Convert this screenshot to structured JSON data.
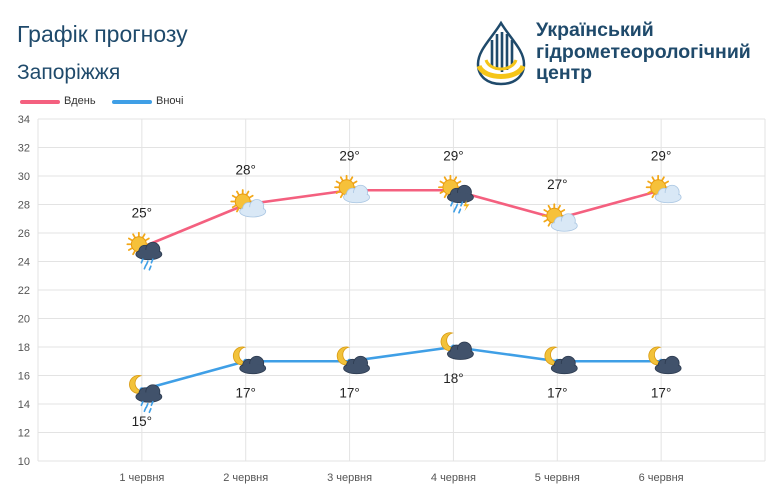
{
  "header": {
    "title": "Графік прогнозу",
    "city": "Запоріжжя"
  },
  "logo": {
    "lines": [
      "Український",
      "гідрометеорологічний",
      "центр"
    ],
    "colors": {
      "navy": "#1f4a6b",
      "yellow": "#f5c518"
    }
  },
  "chart_data": {
    "type": "line",
    "categories": [
      "1 червня",
      "2 червня",
      "3 червня",
      "4 червня",
      "5 червня",
      "6 червня"
    ],
    "ylim": [
      10,
      34
    ],
    "yticks": [
      10,
      12,
      14,
      16,
      18,
      20,
      22,
      24,
      26,
      28,
      30,
      32,
      34
    ],
    "grid": true,
    "legend_position": "top-left",
    "series": [
      {
        "name": "Вдень",
        "color": "#f4607f",
        "values": [
          25,
          28,
          29,
          29,
          27,
          29
        ],
        "labels": [
          "25°",
          "28°",
          "29°",
          "29°",
          "27°",
          "29°"
        ],
        "icons": [
          "sun-cloud-rain-icon",
          "sun-cloud-icon",
          "sun-cloud-icon",
          "sun-cloud-thunderstorm-icon",
          "sun-cloud-icon",
          "sun-cloud-icon"
        ]
      },
      {
        "name": "Вночі",
        "color": "#3f9fe6",
        "values": [
          15,
          17,
          17,
          18,
          17,
          17
        ],
        "labels": [
          "15°",
          "17°",
          "17°",
          "18°",
          "17°",
          "17°"
        ],
        "icons": [
          "moon-cloud-rain-icon",
          "moon-cloud-icon",
          "moon-cloud-icon",
          "moon-cloud-icon",
          "moon-cloud-icon",
          "moon-cloud-icon"
        ]
      }
    ]
  }
}
